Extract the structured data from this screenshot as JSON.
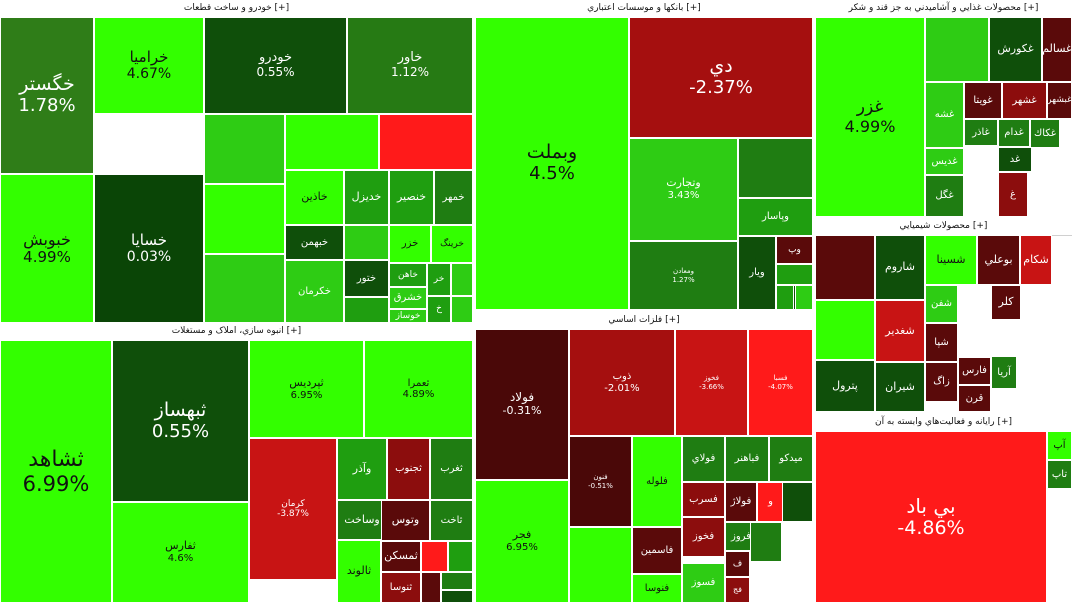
{
  "palette": {
    "bright_green": "#33ff00",
    "green": "#2ecc14",
    "mid_green": "#1f9e10",
    "dark_green": "#136b0b",
    "deep_green": "#0a4a06",
    "maroon": "#5a0a0a",
    "dark_red": "#8c0d0d",
    "red": "#c81414",
    "bright_red": "#ff1a1a",
    "header_bg": "#ffffff"
  },
  "chart_data": {
    "type": "treemap",
    "sectors": [
      {
        "name": "خودرو و ساخت قطعات [+]",
        "tiles": [
          {
            "symbol": "خگستر",
            "change": "1.78%",
            "color": "#2f7d18"
          },
          {
            "symbol": "خراميا",
            "change": "4.67%",
            "color": "#33ff00"
          },
          {
            "symbol": "خودرو",
            "change": "0.55%",
            "color": "#0f4f0a"
          },
          {
            "symbol": "خاور",
            "change": "1.12%",
            "color": "#267a14"
          },
          {
            "symbol": "خبوبش",
            "change": "4.99%",
            "color": "#33ff00"
          },
          {
            "symbol": "خسايا",
            "change": "0.03%",
            "color": "#0a4506"
          },
          {
            "symbol": "",
            "change": "",
            "color": "#2ecc14"
          },
          {
            "symbol": "",
            "change": "",
            "color": "#33ff00"
          },
          {
            "symbol": "",
            "change": "",
            "color": "#33ff00"
          },
          {
            "symbol": "",
            "change": "",
            "color": "#ff1a1a"
          },
          {
            "symbol": "",
            "change": "",
            "color": "#2ecc14"
          },
          {
            "symbol": "خاذين",
            "change": "",
            "color": "#33ff00"
          },
          {
            "symbol": "خديزل",
            "change": "",
            "color": "#1f9e10"
          },
          {
            "symbol": "خنصير",
            "change": "",
            "color": "#1f9e10"
          },
          {
            "symbol": "خمهر",
            "change": "",
            "color": "#1f7d12"
          },
          {
            "symbol": "",
            "change": "",
            "color": "#2ecc14"
          },
          {
            "symbol": "خبهمن",
            "change": "",
            "color": "#0f4f0a"
          },
          {
            "symbol": "ختور",
            "change": "",
            "color": "#0f4f0a"
          },
          {
            "symbol": "خزر",
            "change": "",
            "color": "#33ff00"
          },
          {
            "symbol": "خرينگ",
            "change": "",
            "color": "#33ff00"
          },
          {
            "symbol": "",
            "change": "",
            "color": "#1f9e10"
          },
          {
            "symbol": "خكرمان",
            "change": "",
            "color": "#2ecc14"
          },
          {
            "symbol": "خاهن",
            "change": "",
            "color": "#1f9e10"
          },
          {
            "symbol": "خشرق",
            "change": "",
            "color": "#2ecc14"
          },
          {
            "symbol": "خر",
            "change": "",
            "color": "#1f9e10"
          },
          {
            "symbol": "خوساز",
            "change": "",
            "color": "#2ecc14"
          },
          {
            "symbol": "",
            "change": "",
            "color": "#2ecc14"
          },
          {
            "symbol": "خ",
            "change": "",
            "color": "#1f9e10"
          },
          {
            "symbol": "",
            "change": "",
            "color": "#2ecc14"
          }
        ]
      },
      {
        "name": "انبوه سازي، املاک و مستغلات [+]",
        "tiles": [
          {
            "symbol": "ثشاهد",
            "change": "6.99%",
            "color": "#33ff00"
          },
          {
            "symbol": "ثبهساز",
            "change": "0.55%",
            "color": "#0f4f0a"
          },
          {
            "symbol": "ثپرديس",
            "change": "6.95%",
            "color": "#33ff00"
          },
          {
            "symbol": "ثعمرا",
            "change": "4.89%",
            "color": "#33ff00"
          },
          {
            "symbol": "ثفارس",
            "change": "4.6%",
            "color": "#33ff00"
          },
          {
            "symbol": "كرمان",
            "change": "-3.87%",
            "color": "#c81414"
          },
          {
            "symbol": "وآذر",
            "change": "",
            "color": "#1f9e10"
          },
          {
            "symbol": "ثجنوب",
            "change": "",
            "color": "#8c0d0d"
          },
          {
            "symbol": "ثغرب",
            "change": "",
            "color": "#1f7d12"
          },
          {
            "symbol": "وساخت",
            "change": "",
            "color": "#1f7d12"
          },
          {
            "symbol": "وتوس",
            "change": "",
            "color": "#5a0a0a"
          },
          {
            "symbol": "ثاخت",
            "change": "",
            "color": "#1f7d12"
          },
          {
            "symbol": "",
            "change": "",
            "color": "#8c0d0d"
          },
          {
            "symbol": "ثالوند",
            "change": "",
            "color": "#33ff00"
          },
          {
            "symbol": "ثمسكن",
            "change": "",
            "color": "#5a0a0a"
          },
          {
            "symbol": "",
            "change": "",
            "color": "#ff1a1a"
          },
          {
            "symbol": "",
            "change": "",
            "color": "#1f9e10"
          },
          {
            "symbol": "ثنوسا",
            "change": "",
            "color": "#8c0d0d"
          },
          {
            "symbol": "",
            "change": "",
            "color": "#5a0a0a"
          },
          {
            "symbol": "",
            "change": "",
            "color": "#1f7d12"
          },
          {
            "symbol": "",
            "change": "",
            "color": "#0f4f0a"
          }
        ]
      },
      {
        "name": "بانكها و موسسات اعتباري [+]",
        "tiles": [
          {
            "symbol": "وبملت",
            "change": "4.5%",
            "color": "#33ff00"
          },
          {
            "symbol": "دي",
            "change": "-2.37%",
            "color": "#a50f0f"
          },
          {
            "symbol": "وتجارت",
            "change": "3.43%",
            "color": "#2ecc14"
          },
          {
            "symbol": "",
            "change": "",
            "color": "#1f7d12"
          },
          {
            "symbol": "وپاسار",
            "change": "",
            "color": "#1f9e10"
          },
          {
            "symbol": "ومعادن",
            "change": "1.27%",
            "color": "#1f7d12"
          },
          {
            "symbol": "وپ",
            "change": "",
            "color": "#5a0a0a"
          },
          {
            "symbol": "ويار",
            "change": "",
            "color": "#0f4f0a"
          },
          {
            "symbol": "",
            "change": "",
            "color": "#1f9e10"
          },
          {
            "symbol": "",
            "change": "",
            "color": "#0f4f0a"
          },
          {
            "symbol": "",
            "change": "",
            "color": "#1f9e10"
          },
          {
            "symbol": "",
            "change": "",
            "color": "#2ecc14"
          }
        ]
      },
      {
        "name": "فلزات اساسي [+]",
        "tiles": [
          {
            "symbol": "فولاد",
            "change": "-0.31%",
            "color": "#4a0808"
          },
          {
            "symbol": "ذوب",
            "change": "-2.01%",
            "color": "#a50f0f"
          },
          {
            "symbol": "فخوز",
            "change": "-3.66%",
            "color": "#c81414"
          },
          {
            "symbol": "فسبا",
            "change": "-4.07%",
            "color": "#ff1a1a"
          },
          {
            "symbol": "فنون",
            "change": "-0.51%",
            "color": "#4a0808"
          },
          {
            "symbol": "فلوله",
            "change": "",
            "color": "#33ff00"
          },
          {
            "symbol": "فولاي",
            "change": "",
            "color": "#1f7d12"
          },
          {
            "symbol": "فباهنر",
            "change": "",
            "color": "#1f7d12"
          },
          {
            "symbol": "ميدكو",
            "change": "",
            "color": "#1f7d12"
          },
          {
            "symbol": "فسرب",
            "change": "",
            "color": "#8c0d0d"
          },
          {
            "symbol": "فولاژ",
            "change": "",
            "color": "#5a0a0a"
          },
          {
            "symbol": "و",
            "change": "",
            "color": "#ff1a1a"
          },
          {
            "symbol": "فجر",
            "change": "6.95%",
            "color": "#33ff00"
          },
          {
            "symbol": "",
            "change": "",
            "color": "#33ff00"
          },
          {
            "symbol": "فاسمين",
            "change": "",
            "color": "#5a0a0a"
          },
          {
            "symbol": "فخوز",
            "change": "",
            "color": "#8c0d0d"
          },
          {
            "symbol": "فروز",
            "change": "",
            "color": "#1f7d12"
          },
          {
            "symbol": "فنوسا",
            "change": "",
            "color": "#33ff00"
          },
          {
            "symbol": "فسوز",
            "change": "",
            "color": "#2ecc14"
          },
          {
            "symbol": "فج",
            "change": "",
            "color": "#8c0d0d"
          },
          {
            "symbol": "ف",
            "change": "",
            "color": "#5a0a0a"
          },
          {
            "symbol": "",
            "change": "",
            "color": "#1f7d12"
          },
          {
            "symbol": "",
            "change": "",
            "color": "#0f4f0a"
          }
        ]
      },
      {
        "name": "محصولات غذايي و آشاميدني به جز قند و شكر [+]",
        "tiles": [
          {
            "symbol": "غزر",
            "change": "4.99%",
            "color": "#33ff00"
          },
          {
            "symbol": "",
            "change": "",
            "color": "#2ecc14"
          },
          {
            "symbol": "غكورش",
            "change": "",
            "color": "#0f4f0a"
          },
          {
            "symbol": "غسالم",
            "change": "",
            "color": "#5a0a0a"
          },
          {
            "symbol": "غشه",
            "change": "",
            "color": "#2ecc14"
          },
          {
            "symbol": "غويتا",
            "change": "",
            "color": "#5a0a0a"
          },
          {
            "symbol": "غشهر",
            "change": "",
            "color": "#8c0d0d"
          },
          {
            "symbol": "غبشهر",
            "change": "",
            "color": "#5a0a0a"
          },
          {
            "symbol": "غديس",
            "change": "",
            "color": "#2ecc14"
          },
          {
            "symbol": "غاذر",
            "change": "",
            "color": "#1f7d12"
          },
          {
            "symbol": "غدام",
            "change": "",
            "color": "#1f7d12"
          },
          {
            "symbol": "غكاك",
            "change": "",
            "color": "#1f7d12"
          },
          {
            "symbol": "غگل",
            "change": "",
            "color": "#1f7d12"
          },
          {
            "symbol": "غد",
            "change": "",
            "color": "#0f4f0a"
          },
          {
            "symbol": "غ",
            "change": "",
            "color": "#8c0d0d"
          }
        ]
      },
      {
        "name": "محصولات شيميايي [+]",
        "tiles": [
          {
            "symbol": "",
            "change": "",
            "color": "#5a0a0a"
          },
          {
            "symbol": "شاروم",
            "change": "",
            "color": "#0f4f0a"
          },
          {
            "symbol": "شسينا",
            "change": "",
            "color": "#33ff00"
          },
          {
            "symbol": "بوعلي",
            "change": "",
            "color": "#5a0a0a"
          },
          {
            "symbol": "شكام",
            "change": "",
            "color": "#c81414"
          },
          {
            "symbol": "",
            "change": "",
            "color": "#33ff00"
          },
          {
            "symbol": "شغدير",
            "change": "",
            "color": "#c81414"
          },
          {
            "symbol": "شفن",
            "change": "",
            "color": "#2ecc14"
          },
          {
            "symbol": "كلر",
            "change": "",
            "color": "#5a0a0a"
          },
          {
            "symbol": "پترول",
            "change": "",
            "color": "#0f4f0a"
          },
          {
            "symbol": "شيران",
            "change": "",
            "color": "#0f4f0a"
          },
          {
            "symbol": "شپا",
            "change": "",
            "color": "#5a0a0a"
          },
          {
            "symbol": "زاگ",
            "change": "",
            "color": "#5a0a0a"
          },
          {
            "symbol": "فارس",
            "change": "",
            "color": "#5a0a0a"
          },
          {
            "symbol": "آريا",
            "change": "",
            "color": "#1f7d12"
          },
          {
            "symbol": "قرن",
            "change": "",
            "color": "#5a0a0a"
          }
        ]
      },
      {
        "name": "رايانه و فعاليت‌هاي وابسته به آن [+]",
        "tiles": [
          {
            "symbol": "بي باد",
            "change": "-4.86%",
            "color": "#ff1a1a"
          },
          {
            "symbol": "آپ",
            "change": "",
            "color": "#33ff00"
          },
          {
            "symbol": "تاپ",
            "change": "",
            "color": "#1f7d12"
          }
        ]
      }
    ]
  }
}
